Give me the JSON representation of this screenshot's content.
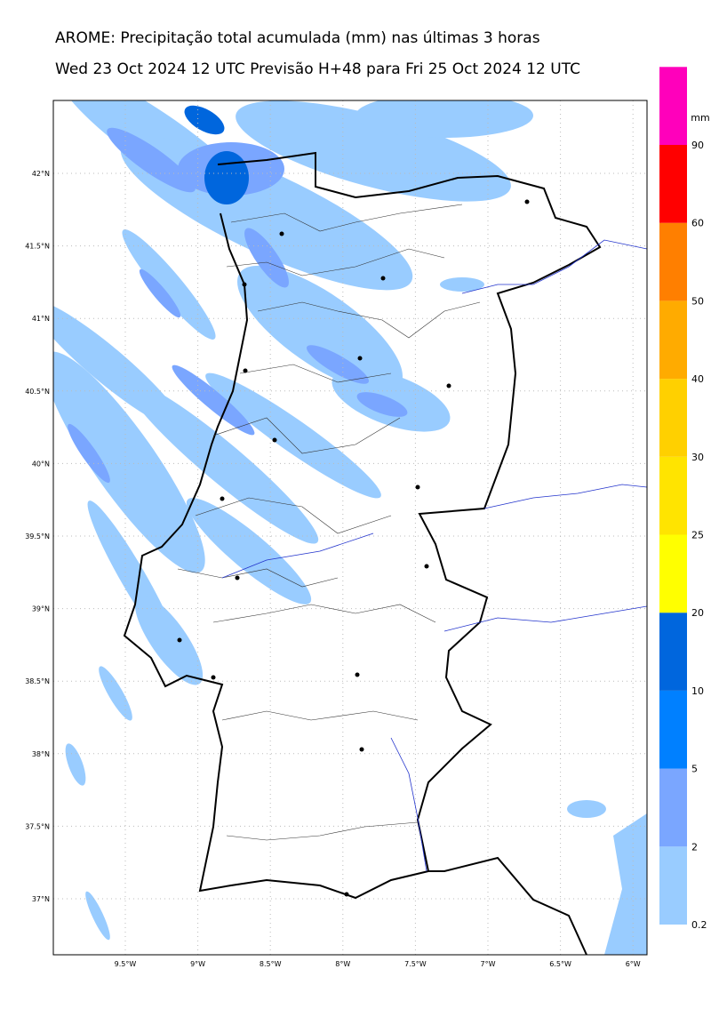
{
  "map": {
    "title": "AROME: Precipitação total acumulada (mm) nas últimas 3 horas",
    "subtitle": "Wed 23 Oct 2024 12 UTC Previsão H+48 para Fri 25 Oct 2024 12 UTC",
    "lat_ticks": [
      {
        "value": 42,
        "label": "42°N"
      },
      {
        "value": 41.5,
        "label": "41.5°N"
      },
      {
        "value": 41,
        "label": "41°N"
      },
      {
        "value": 40.5,
        "label": "40.5°N"
      },
      {
        "value": 40,
        "label": "40°N"
      },
      {
        "value": 39.5,
        "label": "39.5°N"
      },
      {
        "value": 39,
        "label": "39°N"
      },
      {
        "value": 38.5,
        "label": "38.5°N"
      },
      {
        "value": 38,
        "label": "38°N"
      },
      {
        "value": 37.5,
        "label": "37.5°N"
      },
      {
        "value": 37,
        "label": "37°N"
      }
    ],
    "lon_ticks": [
      {
        "value": -9.5,
        "label": "9.5°W"
      },
      {
        "value": -9,
        "label": "9°W"
      },
      {
        "value": -8.5,
        "label": "8.5°W"
      },
      {
        "value": -8,
        "label": "8°W"
      },
      {
        "value": -7.5,
        "label": "7.5°W"
      },
      {
        "value": -7,
        "label": "7°W"
      },
      {
        "value": -6.5,
        "label": "6.5°W"
      },
      {
        "value": -6,
        "label": "6°W"
      }
    ],
    "colorbar": {
      "unit": "mm",
      "levels": [
        0.2,
        2,
        5,
        10,
        20,
        25,
        30,
        40,
        50,
        60,
        90
      ],
      "colors": [
        "#99ccff",
        "#7aa6ff",
        "#0080ff",
        "#0066dd",
        "#ffff00",
        "#ffe400",
        "#ffd000",
        "#ffab00",
        "#ff7f00",
        "#ff0000",
        "#ff00bb"
      ]
    }
  }
}
